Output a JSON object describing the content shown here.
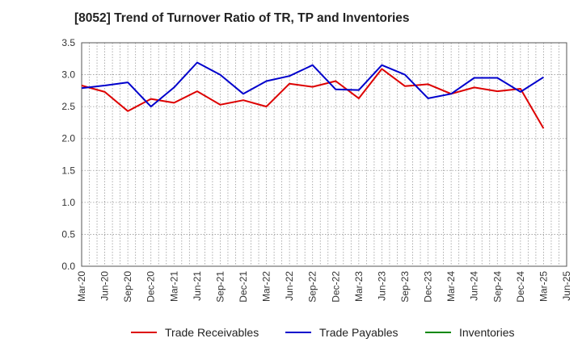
{
  "title": "[8052]  Trend of Turnover Ratio of TR, TP and Inventories",
  "colors": {
    "grid": "#999999",
    "axis": "#555555"
  },
  "chart_data": {
    "type": "line",
    "title": "[8052]  Trend of Turnover Ratio of TR, TP and Inventories",
    "xlabel": "",
    "ylabel": "",
    "ylim": [
      0,
      3.5
    ],
    "yticks": [
      "0.0",
      "0.5",
      "1.0",
      "1.5",
      "2.0",
      "2.5",
      "3.0",
      "3.5"
    ],
    "x": [
      "Mar-20",
      "Jun-20",
      "Sep-20",
      "Dec-20",
      "Mar-21",
      "Jun-21",
      "Sep-21",
      "Dec-21",
      "Mar-22",
      "Jun-22",
      "Sep-22",
      "Dec-22",
      "Mar-23",
      "Jun-23",
      "Sep-23",
      "Dec-23",
      "Mar-24",
      "Jun-24",
      "Sep-24",
      "Dec-24",
      "Mar-25",
      "Jun-25"
    ],
    "grid": true,
    "legend_position": "bottom",
    "series": [
      {
        "name": "Trade Receivables",
        "color": "#dd0000",
        "values": [
          2.83,
          2.73,
          2.43,
          2.62,
          2.56,
          2.74,
          2.53,
          2.6,
          2.5,
          2.86,
          2.81,
          2.9,
          2.63,
          3.09,
          2.82,
          2.85,
          2.7,
          2.8,
          2.74,
          2.78,
          2.16,
          null
        ]
      },
      {
        "name": "Trade Payables",
        "color": "#0000cc",
        "values": [
          2.79,
          2.83,
          2.88,
          2.5,
          2.8,
          3.19,
          3.0,
          2.7,
          2.9,
          2.98,
          3.15,
          2.77,
          2.76,
          3.15,
          3.0,
          2.63,
          2.7,
          2.95,
          2.95,
          2.73,
          2.96,
          null
        ]
      },
      {
        "name": "Inventories",
        "color": "#008800",
        "values": [
          null,
          null,
          null,
          null,
          null,
          null,
          null,
          null,
          null,
          null,
          null,
          null,
          null,
          null,
          null,
          null,
          null,
          null,
          null,
          null,
          null,
          null
        ]
      }
    ]
  }
}
